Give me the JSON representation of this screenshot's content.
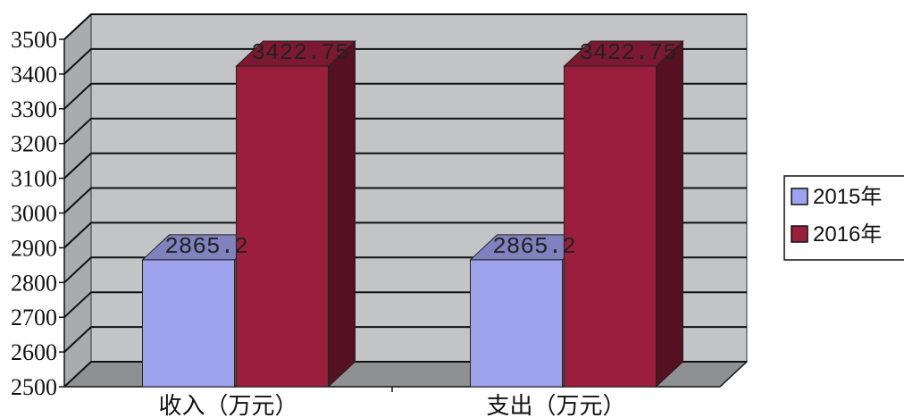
{
  "chart_data": {
    "type": "bar",
    "title": "",
    "xlabel": "",
    "ylabel": "",
    "categories": [
      "收入（万元）",
      "支出（万元）"
    ],
    "series": [
      {
        "name": "2015年",
        "values": [
          2865.2,
          2865.2
        ],
        "labels": [
          "2865.2",
          "2865.2"
        ],
        "color": "#9fa3ee"
      },
      {
        "name": "2016年",
        "values": [
          3422.75,
          3422.75
        ],
        "labels": [
          "3422.75",
          "3422.75"
        ],
        "color": "#9b1f3d"
      }
    ],
    "ylim": [
      2500,
      3500
    ],
    "yticks": [
      2500,
      2600,
      2700,
      2800,
      2900,
      3000,
      3100,
      3200,
      3300,
      3400,
      3500
    ],
    "grid": true,
    "three_d": true,
    "legend_position": "right",
    "colors": {
      "plot_back_wall": "#c2c4c6",
      "plot_side_wall": "#a9abad",
      "floor": "#8e9092",
      "gridline": "#111111"
    }
  }
}
